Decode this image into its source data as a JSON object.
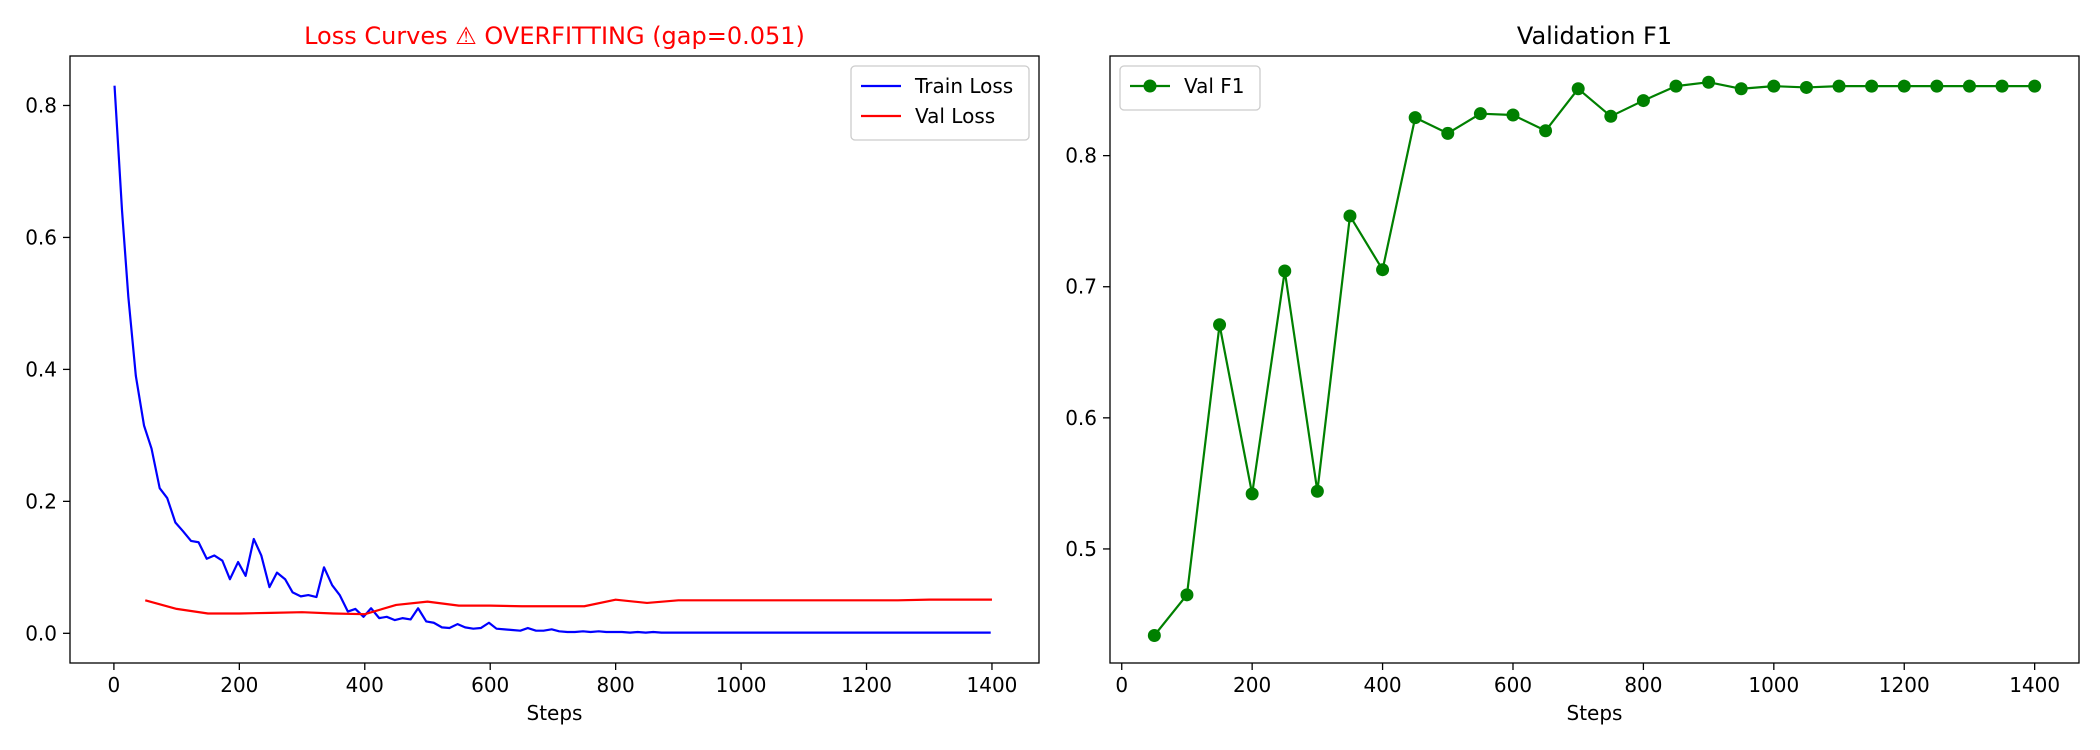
{
  "chart_data": [
    {
      "type": "line",
      "title": "Loss Curves ⚠ OVERFITTING (gap=0.051)",
      "title_color": "#ff0000",
      "xlabel": "Steps",
      "ylabel": "",
      "xlim": [
        -70,
        1475
      ],
      "ylim": [
        -0.045,
        0.875
      ],
      "xticks": [
        0,
        200,
        400,
        600,
        800,
        1000,
        1200,
        1400
      ],
      "yticks": [
        0.0,
        0.2,
        0.4,
        0.6,
        0.8
      ],
      "ytick_format": 1,
      "grid": false,
      "legend": "top-right",
      "series": [
        {
          "name": "Train Loss",
          "color": "#0000ff",
          "marker": false,
          "x": [
            1,
            13,
            23,
            35,
            48,
            60,
            73,
            85,
            98,
            110,
            123,
            135,
            148,
            160,
            173,
            185,
            198,
            210,
            223,
            235,
            248,
            260,
            273,
            285,
            298,
            310,
            323,
            335,
            348,
            360,
            373,
            385,
            398,
            410,
            423,
            435,
            448,
            460,
            473,
            485,
            498,
            510,
            523,
            535,
            548,
            560,
            573,
            585,
            598,
            610,
            623,
            635,
            648,
            660,
            673,
            685,
            698,
            710,
            723,
            735,
            748,
            760,
            773,
            785,
            798,
            810,
            823,
            835,
            848,
            860,
            873,
            885,
            898,
            910,
            923,
            935,
            960,
            1000,
            1050,
            1100,
            1150,
            1200,
            1250,
            1300,
            1350,
            1398
          ],
          "y": [
            0.83,
            0.64,
            0.51,
            0.39,
            0.315,
            0.28,
            0.22,
            0.205,
            0.168,
            0.155,
            0.14,
            0.138,
            0.113,
            0.118,
            0.11,
            0.082,
            0.108,
            0.087,
            0.143,
            0.118,
            0.07,
            0.092,
            0.082,
            0.062,
            0.056,
            0.058,
            0.055,
            0.1,
            0.073,
            0.058,
            0.033,
            0.037,
            0.025,
            0.038,
            0.023,
            0.025,
            0.02,
            0.023,
            0.021,
            0.038,
            0.018,
            0.016,
            0.009,
            0.008,
            0.014,
            0.009,
            0.007,
            0.008,
            0.016,
            0.007,
            0.006,
            0.005,
            0.004,
            0.008,
            0.004,
            0.004,
            0.006,
            0.003,
            0.002,
            0.002,
            0.003,
            0.002,
            0.003,
            0.002,
            0.002,
            0.002,
            0.001,
            0.002,
            0.001,
            0.002,
            0.001,
            0.001,
            0.001,
            0.001,
            0.001,
            0.001,
            0.001,
            0.001,
            0.001,
            0.001,
            0.001,
            0.001,
            0.001,
            0.001,
            0.001,
            0.001
          ]
        },
        {
          "name": "Val Loss",
          "color": "#ff0000",
          "marker": false,
          "x": [
            50,
            100,
            150,
            200,
            250,
            300,
            350,
            400,
            450,
            500,
            550,
            600,
            650,
            700,
            750,
            800,
            850,
            900,
            950,
            1000,
            1050,
            1100,
            1150,
            1200,
            1250,
            1300,
            1350,
            1400
          ],
          "y": [
            0.05,
            0.037,
            0.03,
            0.03,
            0.031,
            0.032,
            0.03,
            0.029,
            0.043,
            0.048,
            0.042,
            0.042,
            0.041,
            0.041,
            0.041,
            0.051,
            0.046,
            0.05,
            0.05,
            0.05,
            0.05,
            0.05,
            0.05,
            0.05,
            0.05,
            0.051,
            0.051,
            0.051
          ]
        }
      ]
    },
    {
      "type": "line",
      "title": "Validation F1",
      "title_color": "#000000",
      "xlabel": "Steps",
      "ylabel": "",
      "xlim": [
        -18,
        1468
      ],
      "ylim": [
        0.413,
        0.876
      ],
      "xticks": [
        0,
        200,
        400,
        600,
        800,
        1000,
        1200,
        1400
      ],
      "yticks": [
        0.5,
        0.6,
        0.7,
        0.8
      ],
      "ytick_format": 1,
      "grid": false,
      "legend": "top-left",
      "series": [
        {
          "name": "Val F1",
          "color": "#008000",
          "marker": true,
          "x": [
            50,
            100,
            150,
            200,
            250,
            300,
            350,
            400,
            450,
            500,
            550,
            600,
            650,
            700,
            750,
            800,
            850,
            900,
            950,
            1000,
            1050,
            1100,
            1150,
            1200,
            1250,
            1300,
            1350,
            1400
          ],
          "y": [
            0.434,
            0.465,
            0.671,
            0.542,
            0.712,
            0.544,
            0.754,
            0.713,
            0.829,
            0.817,
            0.832,
            0.831,
            0.819,
            0.851,
            0.83,
            0.842,
            0.853,
            0.856,
            0.851,
            0.853,
            0.852,
            0.853,
            0.853,
            0.853,
            0.853,
            0.853,
            0.853,
            0.853
          ]
        }
      ]
    }
  ]
}
